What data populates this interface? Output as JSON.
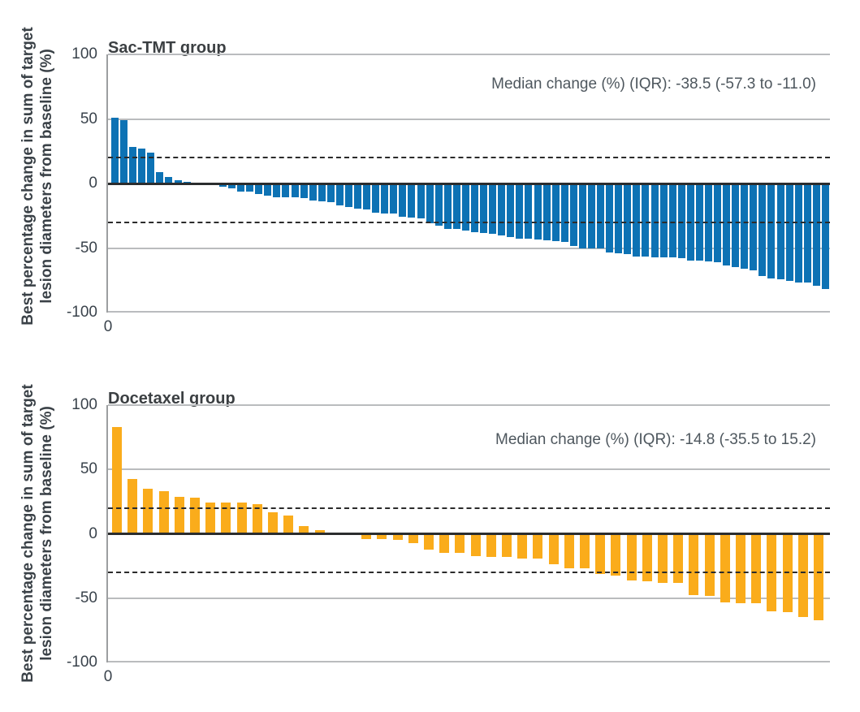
{
  "figure": {
    "y_axis_label_line1": "Best percentage change in sum of target",
    "y_axis_label_line2": "lesion diameters from baseline (%)"
  },
  "colors": {
    "sac_tmt_bar": "#0d72b4",
    "docetaxel_bar": "#faac1b",
    "gridline": "#babcbe",
    "zero_line": "#2b2d2e",
    "dashed_reference": "#2b2b2b",
    "text_dark": "#3b3f42",
    "text_annotation": "#4e575e"
  },
  "chart_data": [
    {
      "type": "bar",
      "title": "Sac-TMT group",
      "annotation": "Median change (%) (IQR): -38.5 (-57.3 to -11.0)",
      "median_change_pct": -38.5,
      "iqr": [
        -57.3,
        -11.0
      ],
      "ylabel": "Best percentage change in sum of target lesion diameters from baseline (%)",
      "x_tick_label": "0",
      "ylim": [
        -100,
        100
      ],
      "yticks": [
        100,
        50,
        0,
        -50,
        -100
      ],
      "reference_lines": [
        20,
        -30
      ],
      "grid": true,
      "legend": "none",
      "bar_color": "#0d72b4",
      "values": [
        51,
        49,
        28,
        27,
        24,
        9,
        5,
        2.5,
        1.2,
        0.5,
        0,
        -1,
        -2.5,
        -3.5,
        -6,
        -6,
        -8,
        -9.5,
        -10.5,
        -11,
        -11,
        -11.5,
        -13,
        -14,
        -14.5,
        -17,
        -18.5,
        -19.5,
        -20,
        -22.5,
        -23.5,
        -23.5,
        -25.5,
        -26.5,
        -27,
        -31,
        -33,
        -35.5,
        -35.5,
        -36.5,
        -38,
        -38.5,
        -39,
        -40,
        -41.5,
        -43,
        -43,
        -43.5,
        -44,
        -44.5,
        -45.5,
        -48.5,
        -50,
        -50.5,
        -50.5,
        -53.5,
        -54,
        -55,
        -56.5,
        -56.5,
        -57,
        -57.5,
        -57.5,
        -58,
        -59.5,
        -60,
        -60.5,
        -61,
        -63.5,
        -65,
        -66,
        -67.5,
        -71.5,
        -73.5,
        -74.5,
        -75.5,
        -76.5,
        -77,
        -79,
        -81.5
      ]
    },
    {
      "type": "bar",
      "title": "Docetaxel group",
      "annotation": "Median change (%) (IQR): -14.8 (-35.5 to 15.2)",
      "median_change_pct": -14.8,
      "iqr": [
        -35.5,
        15.2
      ],
      "ylabel": "Best percentage change in sum of target lesion diameters from baseline (%)",
      "x_tick_label": "0",
      "ylim": [
        -100,
        100
      ],
      "yticks": [
        100,
        50,
        0,
        -50,
        -100
      ],
      "reference_lines": [
        20,
        -30
      ],
      "grid": true,
      "legend": "none",
      "bar_color": "#faac1b",
      "values": [
        83,
        42.5,
        35,
        33,
        28.5,
        28,
        24,
        24,
        24,
        23,
        16.5,
        14,
        6,
        3,
        0.5,
        -1,
        -4,
        -4,
        -5,
        -7,
        -12,
        -15,
        -15,
        -17.5,
        -18,
        -18,
        -19,
        -19.5,
        -23.5,
        -26.5,
        -27,
        -31,
        -32.5,
        -36,
        -37,
        -38,
        -38,
        -47.5,
        -48,
        -53.5,
        -54,
        -54,
        -60,
        -61,
        -64.5,
        -67
      ]
    }
  ]
}
